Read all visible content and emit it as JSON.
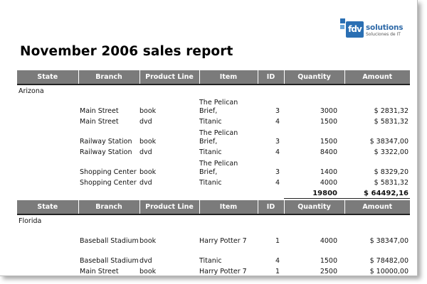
{
  "logo": {
    "mark": "fdv",
    "name": "solutions",
    "tagline": "Soluciones de IT"
  },
  "report": {
    "title": "November 2006 sales report",
    "columns": [
      "State",
      "Branch",
      "Product Line",
      "Item",
      "ID",
      "Quantity",
      "Amount"
    ],
    "groups": [
      {
        "state": "Arizona",
        "rows": [
          {
            "branch": "Main Street",
            "product_line": "book",
            "item": "The Pelican Brief,",
            "id": "3",
            "quantity": "3000",
            "amount": "$ 2831,32"
          },
          {
            "branch": "Main Street",
            "product_line": "dvd",
            "item": "Titanic",
            "id": "4",
            "quantity": "1500",
            "amount": "$ 5831,32"
          },
          {
            "branch": "Railway Station",
            "product_line": "book",
            "item": "The Pelican Brief,",
            "id": "3",
            "quantity": "1500",
            "amount": "$ 38347,00"
          },
          {
            "branch": "Railway Station",
            "product_line": "dvd",
            "item": "Titanic",
            "id": "4",
            "quantity": "8400",
            "amount": "$ 3322,00"
          },
          {
            "branch": "Shopping Center",
            "product_line": "book",
            "item": "The Pelican Brief,",
            "id": "3",
            "quantity": "1400",
            "amount": "$ 8329,20"
          },
          {
            "branch": "Shopping Center",
            "product_line": "dvd",
            "item": "Titanic",
            "id": "4",
            "quantity": "4000",
            "amount": "$ 5831,32"
          }
        ],
        "total_quantity": "19800",
        "total_amount": "$ 64492,16"
      },
      {
        "state": "Florida",
        "rows": [
          {
            "branch": "Baseball Stadium",
            "product_line": "book",
            "item": "Harry Potter 7",
            "id": "1",
            "quantity": "4000",
            "amount": "$ 38347,00"
          },
          {
            "branch": "Baseball Stadium",
            "product_line": "dvd",
            "item": "Titanic",
            "id": "4",
            "quantity": "1500",
            "amount": "$ 78482,00"
          },
          {
            "branch": "Main Street",
            "product_line": "book",
            "item": "Harry Potter 7",
            "id": "1",
            "quantity": "2500",
            "amount": "$ 10000,00"
          }
        ]
      }
    ]
  }
}
